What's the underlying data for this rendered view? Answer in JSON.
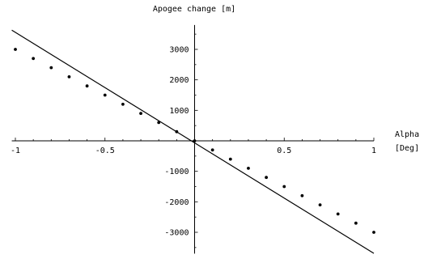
{
  "chart_data": {
    "type": "scatter",
    "title": "",
    "ylabel": "Apogee change [m]",
    "xlabel": "Alpha [Deg]",
    "xlim": [
      -1.02,
      1.0
    ],
    "ylim": [
      -3700,
      3800
    ],
    "x_ticks": [
      -1,
      -0.5,
      0.5,
      1
    ],
    "x_tick_labels": [
      "-1",
      "-0.5",
      "0.5",
      "1"
    ],
    "y_ticks": [
      -3000,
      -2000,
      -1000,
      1000,
      2000,
      3000
    ],
    "y_tick_labels": [
      "-3000",
      "-2000",
      "-1000",
      "1000",
      "2000",
      "3000"
    ],
    "grid": false,
    "legend": "none",
    "series": [
      {
        "kind": "points",
        "x": [
          -1,
          -0.9,
          -0.8,
          -0.7,
          -0.6,
          -0.5,
          -0.4,
          -0.3,
          -0.2,
          -0.1,
          0,
          0.1,
          0.2,
          0.3,
          0.4,
          0.5,
          0.6,
          0.7,
          0.8,
          0.9,
          1
        ],
        "y": [
          3000,
          2700,
          2400,
          2100,
          1800,
          1500,
          1200,
          900,
          600,
          300,
          0,
          -300,
          -600,
          -900,
          -1200,
          -1500,
          -1800,
          -2100,
          -2400,
          -2700,
          -3000
        ]
      },
      {
        "kind": "line",
        "x": [
          -1.02,
          1.0
        ],
        "y": [
          3630,
          -3690
        ]
      }
    ],
    "colors": {
      "points": "#000000",
      "line": "#000000",
      "axis": "#000000"
    }
  }
}
